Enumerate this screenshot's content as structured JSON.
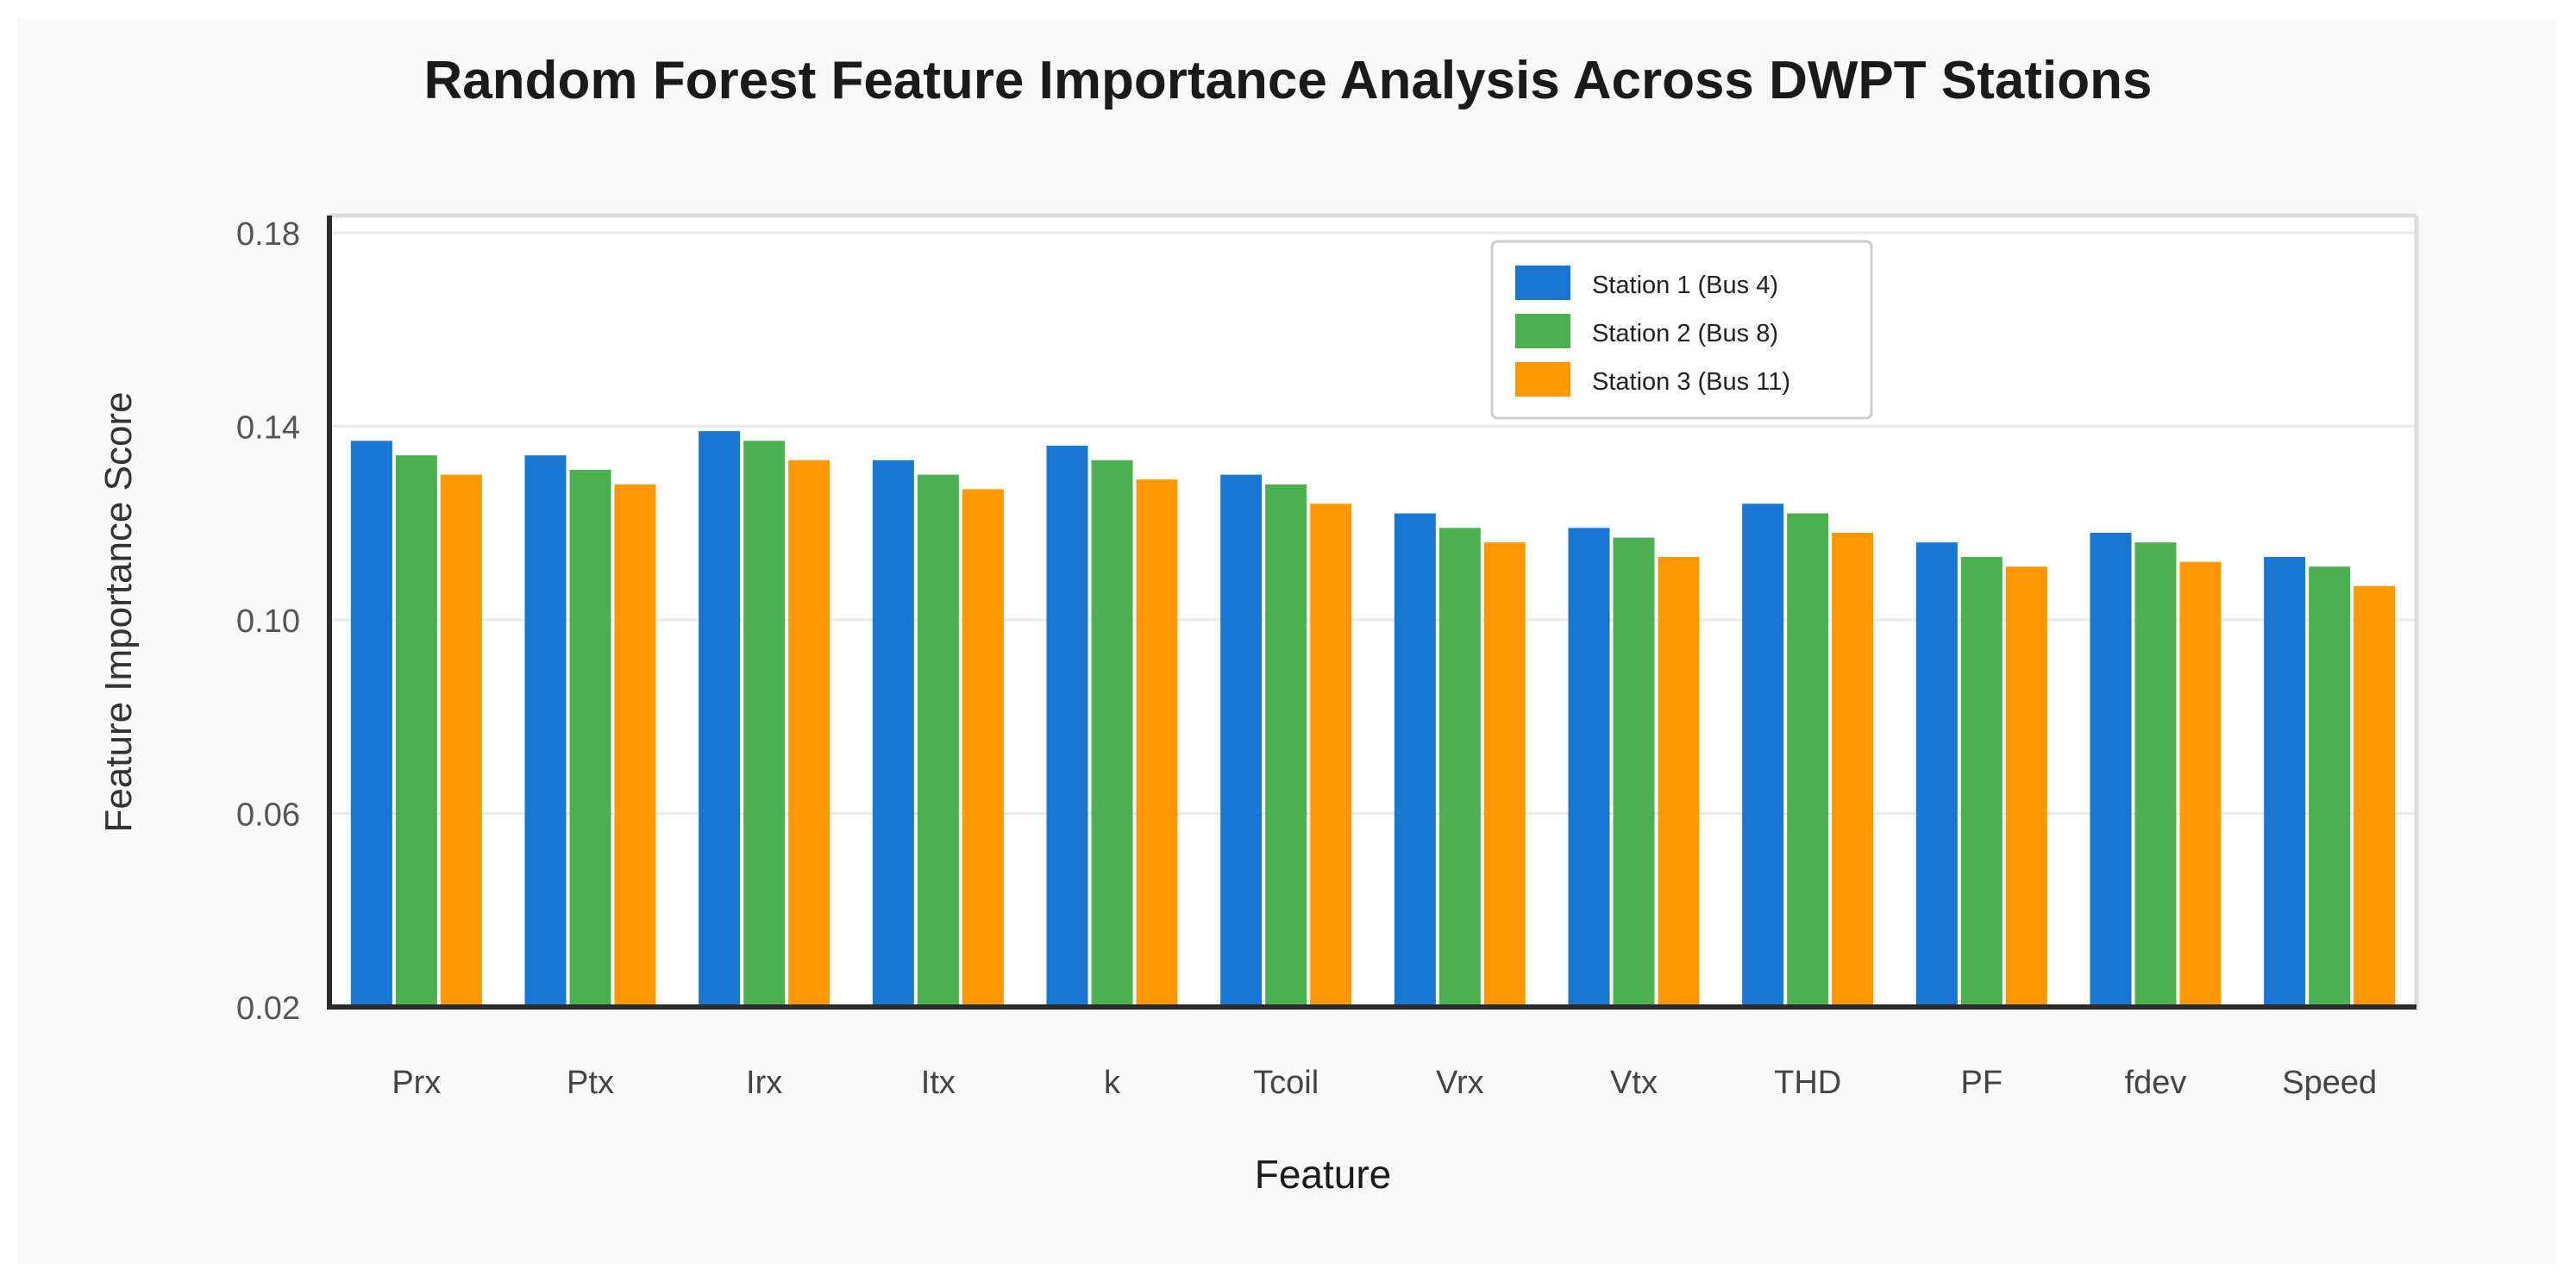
{
  "chart_data": {
    "type": "bar",
    "title": "Random Forest Feature Importance Analysis Across DWPT Stations",
    "xlabel": "Feature",
    "ylabel": "Feature Importance Score",
    "categories": [
      "Prx",
      "Ptx",
      "Irx",
      "Itx",
      "k",
      "Tcoil",
      "Vrx",
      "Vtx",
      "THD",
      "PF",
      "fdev",
      "Speed"
    ],
    "ylim": [
      0.02,
      0.18
    ],
    "yticks": [
      "0.02",
      "0.06",
      "0.10",
      "0.14",
      "0.18"
    ],
    "grid": true,
    "legend_position": "top-right",
    "series": [
      {
        "name": "Station 1 (Bus 4)",
        "color": "#1976d2",
        "values": [
          0.137,
          0.134,
          0.139,
          0.133,
          0.136,
          0.13,
          0.122,
          0.119,
          0.124,
          0.116,
          0.118,
          0.113
        ]
      },
      {
        "name": "Station 2 (Bus 8)",
        "color": "#4caf50",
        "values": [
          0.134,
          0.131,
          0.137,
          0.13,
          0.133,
          0.128,
          0.119,
          0.117,
          0.122,
          0.113,
          0.116,
          0.111
        ]
      },
      {
        "name": "Station 3 (Bus 11)",
        "color": "#ff9800",
        "values": [
          0.13,
          0.128,
          0.133,
          0.127,
          0.129,
          0.124,
          0.116,
          0.113,
          0.118,
          0.111,
          0.112,
          0.107
        ]
      }
    ]
  }
}
